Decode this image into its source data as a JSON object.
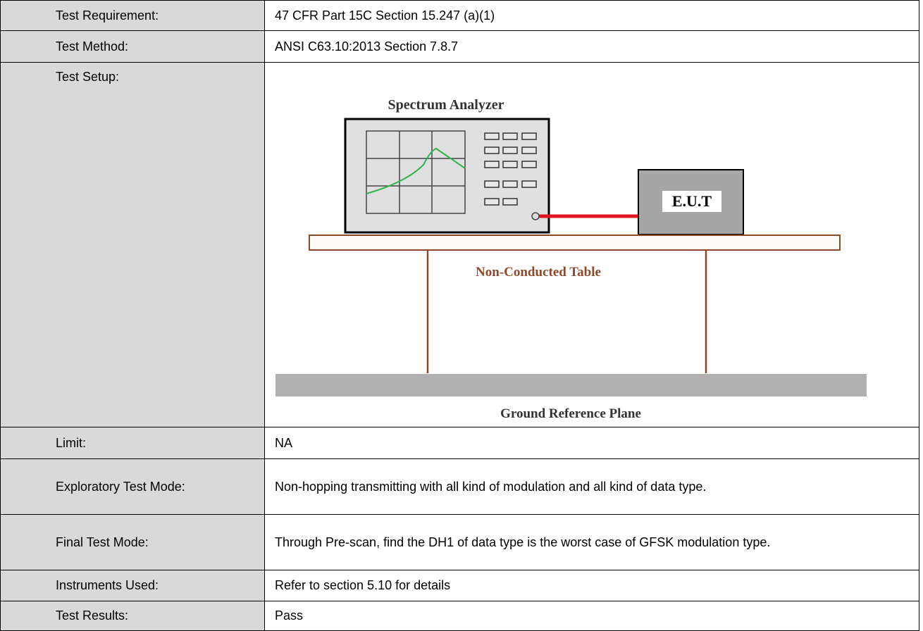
{
  "table": {
    "rows": [
      {
        "label": "Test Requirement:",
        "value": "47 CFR Part 15C Section 15.247 (a)(1)"
      },
      {
        "label": "Test Method:",
        "value": "ANSI C63.10:2013 Section 7.8.7"
      },
      {
        "label": "Test Setup:"
      },
      {
        "label": "Limit:",
        "value": "NA"
      },
      {
        "label": "Exploratory Test Mode:",
        "value": "Non-hopping transmitting with all kind of modulation and all kind of data type."
      },
      {
        "label": "Final Test Mode:",
        "value": "Through Pre-scan, find the DH1 of data type is the worst case of GFSK modulation type."
      },
      {
        "label": "Instruments Used:",
        "value": "Refer to section 5.10 for details"
      },
      {
        "label": "Test Results:",
        "value": "Pass"
      }
    ]
  },
  "diagram": {
    "analyzer": "Spectrum Analyzer",
    "eut": "E.U.T",
    "table": "Non-Conducted Table",
    "ground": "Ground Reference Plane"
  }
}
